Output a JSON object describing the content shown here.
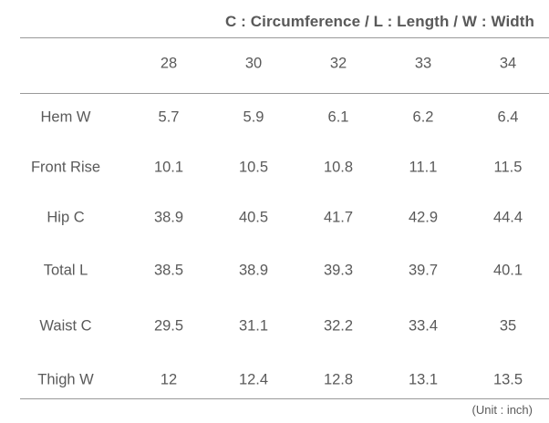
{
  "legend": "C : Circumference / L : Length / W : Width",
  "table": {
    "columns": [
      "28",
      "30",
      "32",
      "33",
      "34"
    ],
    "rows": [
      {
        "label": "Hem W",
        "values": [
          "5.7",
          "5.9",
          "6.1",
          "6.2",
          "6.4"
        ]
      },
      {
        "label": "Front Rise",
        "values": [
          "10.1",
          "10.5",
          "10.8",
          "11.1",
          "11.5"
        ]
      },
      {
        "label": "Hip C",
        "values": [
          "38.9",
          "40.5",
          "41.7",
          "42.9",
          "44.4"
        ]
      },
      {
        "label": "Total L",
        "values": [
          "38.5",
          "38.9",
          "39.3",
          "39.7",
          "40.1"
        ]
      },
      {
        "label": "Waist C",
        "values": [
          "29.5",
          "31.1",
          "32.2",
          "33.4",
          "35"
        ]
      },
      {
        "label": "Thigh W",
        "values": [
          "12",
          "12.4",
          "12.8",
          "13.1",
          "13.5"
        ]
      }
    ]
  },
  "unit_note": "(Unit : inch)"
}
